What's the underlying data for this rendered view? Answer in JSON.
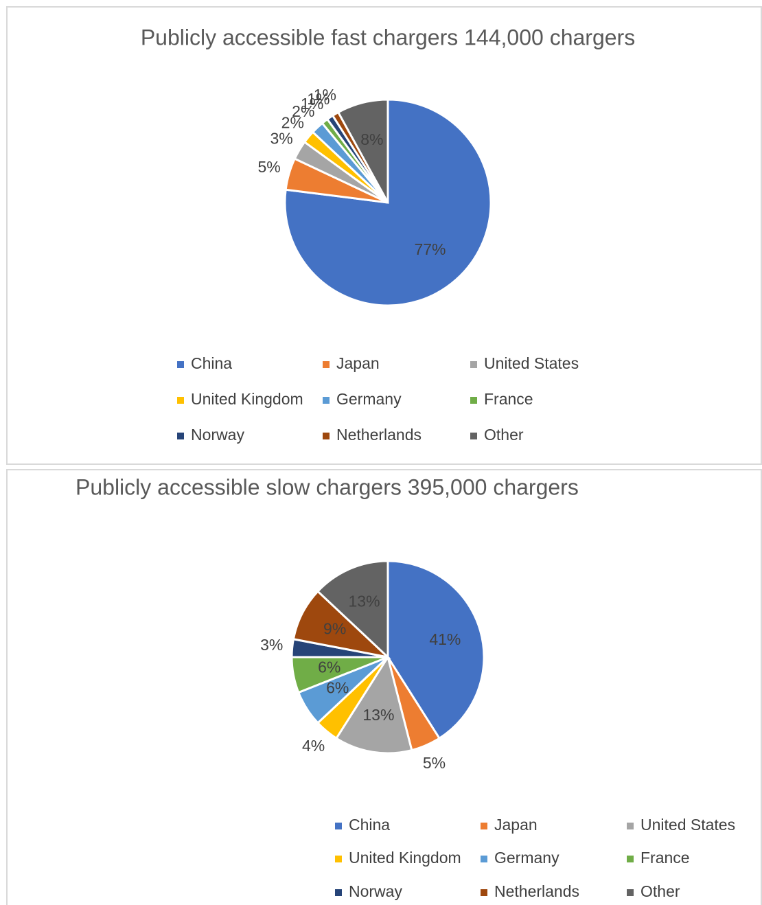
{
  "chart_data": [
    {
      "type": "pie",
      "title": "Publicly accessible fast chargers 144,000 chargers",
      "categories": [
        "China",
        "Japan",
        "United States",
        "United Kingdom",
        "Germany",
        "France",
        "Norway",
        "Netherlands",
        "Other"
      ],
      "values": [
        77,
        5,
        3,
        2,
        2,
        1,
        1,
        1,
        8
      ],
      "value_labels": [
        "77%",
        "5%",
        "3%",
        "2%",
        "2%",
        "1%",
        "1%",
        "1%",
        "8%"
      ],
      "colors": [
        "#4472c4",
        "#ed7d31",
        "#a5a5a5",
        "#ffc000",
        "#5b9bd5",
        "#70ad47",
        "#264478",
        "#9e480e",
        "#636363"
      ],
      "legend": "bottom"
    },
    {
      "type": "pie",
      "title": "Publicly accessible slow chargers 395,000 chargers",
      "categories": [
        "China",
        "Japan",
        "United States",
        "United Kingdom",
        "Germany",
        "France",
        "Norway",
        "Netherlands",
        "Other"
      ],
      "values": [
        41,
        5,
        13,
        4,
        6,
        6,
        3,
        9,
        13
      ],
      "value_labels": [
        "41%",
        "5%",
        "13%",
        "4%",
        "6%",
        "6%",
        "3%",
        "9%",
        "13%"
      ],
      "colors": [
        "#4472c4",
        "#ed7d31",
        "#a5a5a5",
        "#ffc000",
        "#5b9bd5",
        "#70ad47",
        "#264478",
        "#9e480e",
        "#636363"
      ],
      "legend": "bottom"
    }
  ]
}
